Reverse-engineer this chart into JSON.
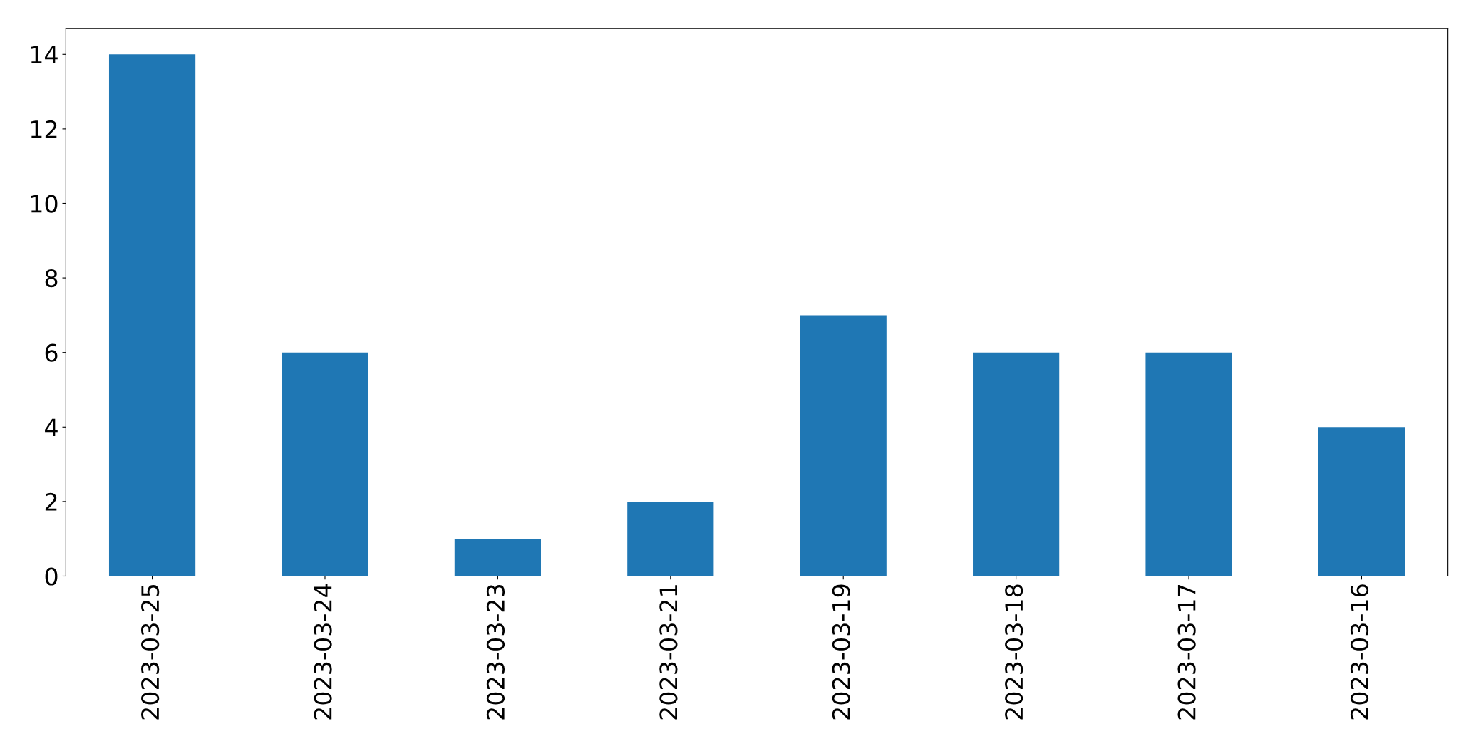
{
  "chart_data": {
    "type": "bar",
    "categories": [
      "2023-03-25",
      "2023-03-24",
      "2023-03-23",
      "2023-03-21",
      "2023-03-19",
      "2023-03-18",
      "2023-03-17",
      "2023-03-16"
    ],
    "values": [
      14,
      6,
      1,
      2,
      7,
      6,
      6,
      4
    ],
    "color": "#1f77b4",
    "ylim": [
      0,
      14.7
    ],
    "yticks": [
      0,
      2,
      4,
      6,
      8,
      10,
      12,
      14
    ],
    "grid": false,
    "legend": false
  }
}
